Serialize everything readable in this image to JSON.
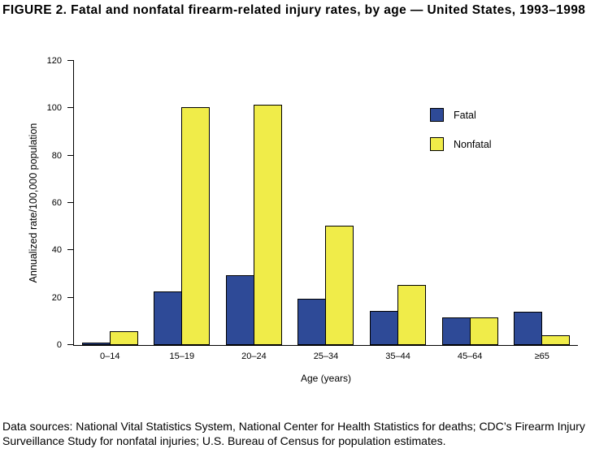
{
  "title": "FIGURE 2. Fatal and nonfatal firearm-related injury rates, by age — United States, 1993–1998",
  "footnote": "Data sources: National Vital Statistics System, National Center for Health Statistics for deaths; CDC’s Firearm Injury Surveillance Study for nonfatal injuries; U.S. Bureau of Census for population estimates.",
  "chart_data": {
    "type": "bar",
    "categories": [
      "0–14",
      "15–19",
      "20–24",
      "25–34",
      "35–44",
      "45–64",
      "≥65"
    ],
    "series": [
      {
        "name": "Fatal",
        "color": "#2e4a97",
        "values": [
          1,
          22.5,
          29.5,
          19.5,
          14.5,
          11.5,
          14
        ]
      },
      {
        "name": "Nonfatal",
        "color": "#f0ec49",
        "values": [
          6,
          100.5,
          101.5,
          50.5,
          25.5,
          11.5,
          4
        ]
      }
    ],
    "xlabel": "Age (years)",
    "ylabel": "Annualized rate/100,000 population",
    "ylim": [
      0,
      120
    ],
    "ytick_interval": 20,
    "grid": false,
    "legend_position": "upper-right-inside"
  }
}
